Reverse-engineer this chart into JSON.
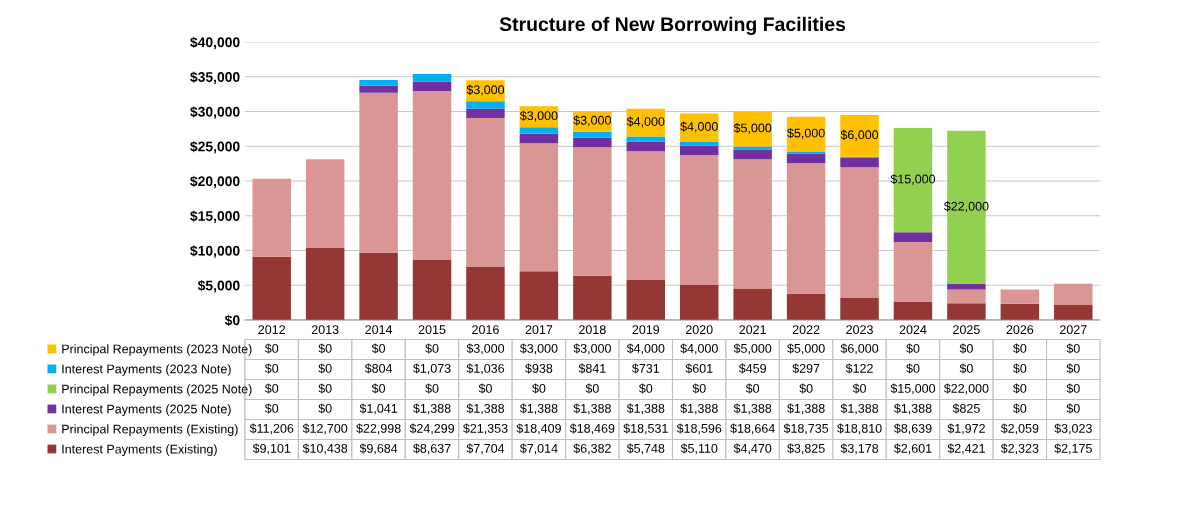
{
  "chart_data": {
    "type": "bar",
    "title": "Structure of New Borrowing Facilities",
    "stacked": true,
    "categories": [
      "2012",
      "2013",
      "2014",
      "2015",
      "2016",
      "2017",
      "2018",
      "2019",
      "2020",
      "2021",
      "2022",
      "2023",
      "2024",
      "2025",
      "2026",
      "2027"
    ],
    "series": [
      {
        "name": "Interest Payments (Existing)",
        "color": "#953735",
        "values": [
          9101,
          10438,
          9684,
          8637,
          7704,
          7014,
          6382,
          5748,
          5110,
          4470,
          3825,
          3178,
          2601,
          2421,
          2323,
          2175
        ],
        "value_labels": [
          "$9,101",
          "$10,438",
          "$9,684",
          "$8,637",
          "$7,704",
          "$7,014",
          "$6,382",
          "$5,748",
          "$5,110",
          "$4,470",
          "$3,825",
          "$3,178",
          "$2,601",
          "$2,421",
          "$2,323",
          "$2,175"
        ]
      },
      {
        "name": "Principal Repayments (Existing)",
        "color": "#d99694",
        "values": [
          11206,
          12700,
          22998,
          24299,
          21353,
          18409,
          18469,
          18531,
          18596,
          18664,
          18735,
          18810,
          8639,
          1972,
          2059,
          3023
        ],
        "value_labels": [
          "$11,206",
          "$12,700",
          "$22,998",
          "$24,299",
          "$21,353",
          "$18,409",
          "$18,469",
          "$18,531",
          "$18,596",
          "$18,664",
          "$18,735",
          "$18,810",
          "$8,639",
          "$1,972",
          "$2,059",
          "$3,023"
        ]
      },
      {
        "name": "Interest Payments (2025 Note)",
        "color": "#7030a0",
        "values": [
          0,
          0,
          1041,
          1388,
          1388,
          1388,
          1388,
          1388,
          1388,
          1388,
          1388,
          1388,
          1388,
          825,
          0,
          0
        ],
        "value_labels": [
          "$0",
          "$0",
          "$1,041",
          "$1,388",
          "$1,388",
          "$1,388",
          "$1,388",
          "$1,388",
          "$1,388",
          "$1,388",
          "$1,388",
          "$1,388",
          "$1,388",
          "$825",
          "$0",
          "$0"
        ]
      },
      {
        "name": "Principal Repayments (2025 Note)",
        "color": "#92d050",
        "data_labels": true,
        "values": [
          0,
          0,
          0,
          0,
          0,
          0,
          0,
          0,
          0,
          0,
          0,
          0,
          15000,
          22000,
          0,
          0
        ],
        "value_labels": [
          "$0",
          "$0",
          "$0",
          "$0",
          "$0",
          "$0",
          "$0",
          "$0",
          "$0",
          "$0",
          "$0",
          "$0",
          "$15,000",
          "$22,000",
          "$0",
          "$0"
        ]
      },
      {
        "name": "Interest Payments (2023 Note)",
        "color": "#00b0f0",
        "values": [
          0,
          0,
          804,
          1073,
          1036,
          938,
          841,
          731,
          601,
          459,
          297,
          122,
          0,
          0,
          0,
          0
        ],
        "value_labels": [
          "$0",
          "$0",
          "$804",
          "$1,073",
          "$1,036",
          "$938",
          "$841",
          "$731",
          "$601",
          "$459",
          "$297",
          "$122",
          "$0",
          "$0",
          "$0",
          "$0"
        ]
      },
      {
        "name": "Principal Repayments (2023 Note)",
        "color": "#ffc000",
        "data_labels": true,
        "values": [
          0,
          0,
          0,
          0,
          3000,
          3000,
          3000,
          4000,
          4000,
          5000,
          5000,
          6000,
          0,
          0,
          0,
          0
        ],
        "value_labels": [
          "$0",
          "$0",
          "$0",
          "$0",
          "$3,000",
          "$3,000",
          "$3,000",
          "$4,000",
          "$4,000",
          "$5,000",
          "$5,000",
          "$6,000",
          "$0",
          "$0",
          "$0",
          "$0"
        ]
      }
    ],
    "ylim": [
      0,
      40000
    ],
    "yticks": [
      {
        "value": 0,
        "label": "$0"
      },
      {
        "value": 5000,
        "label": "$5,000"
      },
      {
        "value": 10000,
        "label": "$10,000"
      },
      {
        "value": 15000,
        "label": "$15,000"
      },
      {
        "value": 20000,
        "label": "$20,000"
      },
      {
        "value": 25000,
        "label": "$25,000"
      },
      {
        "value": 30000,
        "label": "$30,000"
      },
      {
        "value": 35000,
        "label": "$35,000"
      },
      {
        "value": 40000,
        "label": "$40,000"
      }
    ],
    "grid": "y",
    "legend": "bottom left"
  }
}
